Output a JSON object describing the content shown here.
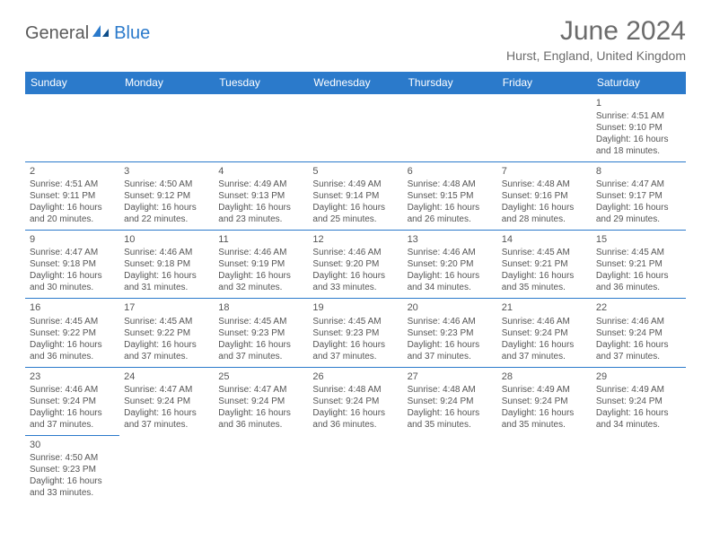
{
  "logo": {
    "text1": "General",
    "text2": "Blue"
  },
  "title": "June 2024",
  "location": "Hurst, England, United Kingdom",
  "colors": {
    "header_bg": "#2b7acb",
    "header_fg": "#ffffff",
    "border": "#2b7acb",
    "text": "#555555",
    "title": "#6b6b6b"
  },
  "weekdays": [
    "Sunday",
    "Monday",
    "Tuesday",
    "Wednesday",
    "Thursday",
    "Friday",
    "Saturday"
  ],
  "cells": [
    [
      null,
      null,
      null,
      null,
      null,
      null,
      {
        "n": "1",
        "sr": "Sunrise: 4:51 AM",
        "ss": "Sunset: 9:10 PM",
        "d1": "Daylight: 16 hours",
        "d2": "and 18 minutes."
      }
    ],
    [
      {
        "n": "2",
        "sr": "Sunrise: 4:51 AM",
        "ss": "Sunset: 9:11 PM",
        "d1": "Daylight: 16 hours",
        "d2": "and 20 minutes."
      },
      {
        "n": "3",
        "sr": "Sunrise: 4:50 AM",
        "ss": "Sunset: 9:12 PM",
        "d1": "Daylight: 16 hours",
        "d2": "and 22 minutes."
      },
      {
        "n": "4",
        "sr": "Sunrise: 4:49 AM",
        "ss": "Sunset: 9:13 PM",
        "d1": "Daylight: 16 hours",
        "d2": "and 23 minutes."
      },
      {
        "n": "5",
        "sr": "Sunrise: 4:49 AM",
        "ss": "Sunset: 9:14 PM",
        "d1": "Daylight: 16 hours",
        "d2": "and 25 minutes."
      },
      {
        "n": "6",
        "sr": "Sunrise: 4:48 AM",
        "ss": "Sunset: 9:15 PM",
        "d1": "Daylight: 16 hours",
        "d2": "and 26 minutes."
      },
      {
        "n": "7",
        "sr": "Sunrise: 4:48 AM",
        "ss": "Sunset: 9:16 PM",
        "d1": "Daylight: 16 hours",
        "d2": "and 28 minutes."
      },
      {
        "n": "8",
        "sr": "Sunrise: 4:47 AM",
        "ss": "Sunset: 9:17 PM",
        "d1": "Daylight: 16 hours",
        "d2": "and 29 minutes."
      }
    ],
    [
      {
        "n": "9",
        "sr": "Sunrise: 4:47 AM",
        "ss": "Sunset: 9:18 PM",
        "d1": "Daylight: 16 hours",
        "d2": "and 30 minutes."
      },
      {
        "n": "10",
        "sr": "Sunrise: 4:46 AM",
        "ss": "Sunset: 9:18 PM",
        "d1": "Daylight: 16 hours",
        "d2": "and 31 minutes."
      },
      {
        "n": "11",
        "sr": "Sunrise: 4:46 AM",
        "ss": "Sunset: 9:19 PM",
        "d1": "Daylight: 16 hours",
        "d2": "and 32 minutes."
      },
      {
        "n": "12",
        "sr": "Sunrise: 4:46 AM",
        "ss": "Sunset: 9:20 PM",
        "d1": "Daylight: 16 hours",
        "d2": "and 33 minutes."
      },
      {
        "n": "13",
        "sr": "Sunrise: 4:46 AM",
        "ss": "Sunset: 9:20 PM",
        "d1": "Daylight: 16 hours",
        "d2": "and 34 minutes."
      },
      {
        "n": "14",
        "sr": "Sunrise: 4:45 AM",
        "ss": "Sunset: 9:21 PM",
        "d1": "Daylight: 16 hours",
        "d2": "and 35 minutes."
      },
      {
        "n": "15",
        "sr": "Sunrise: 4:45 AM",
        "ss": "Sunset: 9:21 PM",
        "d1": "Daylight: 16 hours",
        "d2": "and 36 minutes."
      }
    ],
    [
      {
        "n": "16",
        "sr": "Sunrise: 4:45 AM",
        "ss": "Sunset: 9:22 PM",
        "d1": "Daylight: 16 hours",
        "d2": "and 36 minutes."
      },
      {
        "n": "17",
        "sr": "Sunrise: 4:45 AM",
        "ss": "Sunset: 9:22 PM",
        "d1": "Daylight: 16 hours",
        "d2": "and 37 minutes."
      },
      {
        "n": "18",
        "sr": "Sunrise: 4:45 AM",
        "ss": "Sunset: 9:23 PM",
        "d1": "Daylight: 16 hours",
        "d2": "and 37 minutes."
      },
      {
        "n": "19",
        "sr": "Sunrise: 4:45 AM",
        "ss": "Sunset: 9:23 PM",
        "d1": "Daylight: 16 hours",
        "d2": "and 37 minutes."
      },
      {
        "n": "20",
        "sr": "Sunrise: 4:46 AM",
        "ss": "Sunset: 9:23 PM",
        "d1": "Daylight: 16 hours",
        "d2": "and 37 minutes."
      },
      {
        "n": "21",
        "sr": "Sunrise: 4:46 AM",
        "ss": "Sunset: 9:24 PM",
        "d1": "Daylight: 16 hours",
        "d2": "and 37 minutes."
      },
      {
        "n": "22",
        "sr": "Sunrise: 4:46 AM",
        "ss": "Sunset: 9:24 PM",
        "d1": "Daylight: 16 hours",
        "d2": "and 37 minutes."
      }
    ],
    [
      {
        "n": "23",
        "sr": "Sunrise: 4:46 AM",
        "ss": "Sunset: 9:24 PM",
        "d1": "Daylight: 16 hours",
        "d2": "and 37 minutes."
      },
      {
        "n": "24",
        "sr": "Sunrise: 4:47 AM",
        "ss": "Sunset: 9:24 PM",
        "d1": "Daylight: 16 hours",
        "d2": "and 37 minutes."
      },
      {
        "n": "25",
        "sr": "Sunrise: 4:47 AM",
        "ss": "Sunset: 9:24 PM",
        "d1": "Daylight: 16 hours",
        "d2": "and 36 minutes."
      },
      {
        "n": "26",
        "sr": "Sunrise: 4:48 AM",
        "ss": "Sunset: 9:24 PM",
        "d1": "Daylight: 16 hours",
        "d2": "and 36 minutes."
      },
      {
        "n": "27",
        "sr": "Sunrise: 4:48 AM",
        "ss": "Sunset: 9:24 PM",
        "d1": "Daylight: 16 hours",
        "d2": "and 35 minutes."
      },
      {
        "n": "28",
        "sr": "Sunrise: 4:49 AM",
        "ss": "Sunset: 9:24 PM",
        "d1": "Daylight: 16 hours",
        "d2": "and 35 minutes."
      },
      {
        "n": "29",
        "sr": "Sunrise: 4:49 AM",
        "ss": "Sunset: 9:24 PM",
        "d1": "Daylight: 16 hours",
        "d2": "and 34 minutes."
      }
    ],
    [
      {
        "n": "30",
        "sr": "Sunrise: 4:50 AM",
        "ss": "Sunset: 9:23 PM",
        "d1": "Daylight: 16 hours",
        "d2": "and 33 minutes."
      },
      null,
      null,
      null,
      null,
      null,
      null
    ]
  ]
}
